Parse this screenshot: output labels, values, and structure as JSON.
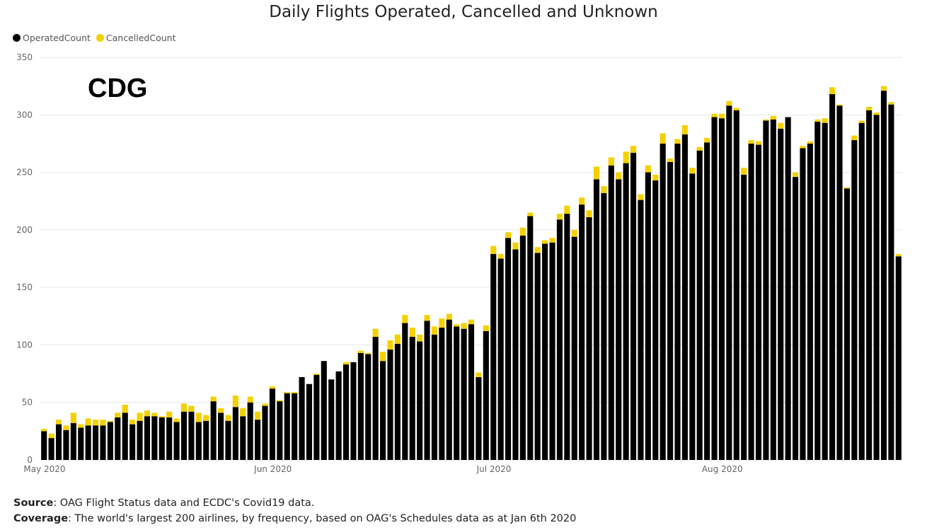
{
  "chart_data": {
    "type": "bar",
    "stacked": true,
    "title": "Daily Flights Operated, Cancelled and Unknown",
    "annotation": "CDG",
    "legend": [
      "OperatedCount",
      "CancelledCount"
    ],
    "legend_position": "top-left",
    "ylim": [
      0,
      350
    ],
    "yticks": [
      0,
      50,
      100,
      150,
      200,
      250,
      300,
      350
    ],
    "grid": true,
    "x_start": "2020-05-01",
    "x_ticks": [
      {
        "label": "May 2020",
        "index": 0
      },
      {
        "label": "Jun 2020",
        "index": 31
      },
      {
        "label": "Jul 2020",
        "index": 61
      },
      {
        "label": "Aug 2020",
        "index": 92
      }
    ],
    "series": [
      {
        "name": "OperatedCount",
        "color": "#000000",
        "values": [
          25,
          19,
          31,
          26,
          32,
          28,
          30,
          30,
          30,
          33,
          37,
          41,
          31,
          34,
          38,
          38,
          37,
          37,
          33,
          42,
          42,
          33,
          34,
          51,
          41,
          34,
          46,
          38,
          50,
          35,
          47,
          62,
          51,
          58,
          58,
          72,
          66,
          74,
          86,
          70,
          77,
          83,
          85,
          93,
          92,
          107,
          86,
          96,
          101,
          119,
          107,
          103,
          121,
          109,
          115,
          122,
          116,
          114,
          118,
          72,
          112,
          179,
          175,
          193,
          183,
          195,
          212,
          180,
          188,
          189,
          209,
          214,
          194,
          222,
          211,
          244,
          232,
          256,
          244,
          258,
          267,
          226,
          250,
          243,
          275,
          259,
          275,
          283,
          249,
          269,
          276,
          298,
          297,
          308,
          304,
          248,
          275,
          274,
          295,
          296,
          288,
          298,
          246,
          271,
          275,
          294,
          293,
          318,
          308,
          236,
          278,
          293,
          304,
          300,
          321,
          309,
          177
        ]
      },
      {
        "name": "CancelledCount",
        "color": "#f5d000",
        "values": [
          2,
          4,
          4,
          4,
          9,
          3,
          6,
          5,
          5,
          1,
          4,
          7,
          4,
          7,
          5,
          3,
          1,
          5,
          3,
          7,
          5,
          8,
          5,
          4,
          4,
          5,
          10,
          7,
          5,
          7,
          2,
          2,
          1,
          1,
          1,
          0,
          0,
          1,
          0,
          0,
          0,
          2,
          0,
          2,
          1,
          7,
          8,
          8,
          8,
          7,
          8,
          6,
          5,
          7,
          8,
          5,
          2,
          5,
          4,
          4,
          5,
          7,
          4,
          5,
          6,
          7,
          3,
          5,
          3,
          4,
          5,
          7,
          6,
          6,
          6,
          11,
          6,
          7,
          6,
          10,
          6,
          5,
          6,
          5,
          9,
          3,
          4,
          8,
          5,
          3,
          4,
          3,
          4,
          4,
          2,
          6,
          3,
          3,
          1,
          3,
          5,
          0,
          4,
          2,
          2,
          2,
          4,
          6,
          1,
          1,
          4,
          2,
          3,
          2,
          4,
          2,
          2
        ]
      }
    ],
    "xlabel": "",
    "ylabel": ""
  },
  "footer": {
    "source_label": "Source",
    "source_text": ": OAG Flight Status data and ECDC's Covid19 data.",
    "coverage_label": "Coverage",
    "coverage_text": ": The world's largest 200 airlines, by frequency, based on OAG's Schedules data as at Jan 6th 2020"
  }
}
